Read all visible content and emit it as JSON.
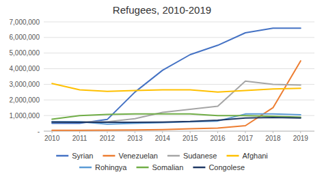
{
  "chart_data": {
    "type": "line",
    "title": "Refugees, 2010-2019",
    "x": [
      2010,
      2011,
      2012,
      2013,
      2014,
      2015,
      2016,
      2017,
      2018,
      2019
    ],
    "series": [
      {
        "name": "Syrian",
        "color": "#4472C4",
        "values": [
          500000,
          500000,
          750000,
          2500000,
          3900000,
          4900000,
          5500000,
          6300000,
          6600000,
          6600000
        ]
      },
      {
        "name": "Venezuelan",
        "color": "#ED7D31",
        "values": [
          50000,
          60000,
          70000,
          80000,
          100000,
          150000,
          200000,
          350000,
          1500000,
          4500000
        ]
      },
      {
        "name": "Sudanese",
        "color": "#A5A5A5",
        "values": [
          600000,
          600000,
          600000,
          800000,
          1200000,
          1400000,
          1600000,
          3200000,
          3000000,
          2950000
        ]
      },
      {
        "name": "Afghani",
        "color": "#FFC000",
        "values": [
          3050000,
          2650000,
          2550000,
          2600000,
          2650000,
          2650000,
          2500000,
          2600000,
          2700000,
          2750000
        ]
      },
      {
        "name": "Rohingya",
        "color": "#5B9BD5",
        "values": [
          600000,
          600000,
          450000,
          500000,
          550000,
          600000,
          650000,
          1100000,
          1100000,
          1050000
        ]
      },
      {
        "name": "Somalian",
        "color": "#70AD47",
        "values": [
          770000,
          1000000,
          1070000,
          1100000,
          1100000,
          1100000,
          1000000,
          1000000,
          950000,
          900000
        ]
      },
      {
        "name": "Congolese",
        "color": "#1F3864",
        "values": [
          580000,
          570000,
          570000,
          570000,
          580000,
          620000,
          700000,
          840000,
          880000,
          840000
        ]
      }
    ],
    "xlim": [
      2009.7,
      2019.5
    ],
    "xticks": [
      2010,
      2011,
      2012,
      2013,
      2014,
      2015,
      2016,
      2017,
      2018,
      2019
    ],
    "ylim": [
      0,
      7000000
    ],
    "yticks": [
      {
        "value": 0,
        "label": "-"
      },
      {
        "value": 1000000,
        "label": "1,000,000"
      },
      {
        "value": 2000000,
        "label": "2,000,000"
      },
      {
        "value": 3000000,
        "label": "3,000,000"
      },
      {
        "value": 4000000,
        "label": "4,000,000"
      },
      {
        "value": 5000000,
        "label": "5,000,000"
      },
      {
        "value": 6000000,
        "label": "6,000,000"
      },
      {
        "value": 7000000,
        "label": "7,000,000"
      }
    ],
    "grid": true,
    "legend": "bottom"
  }
}
